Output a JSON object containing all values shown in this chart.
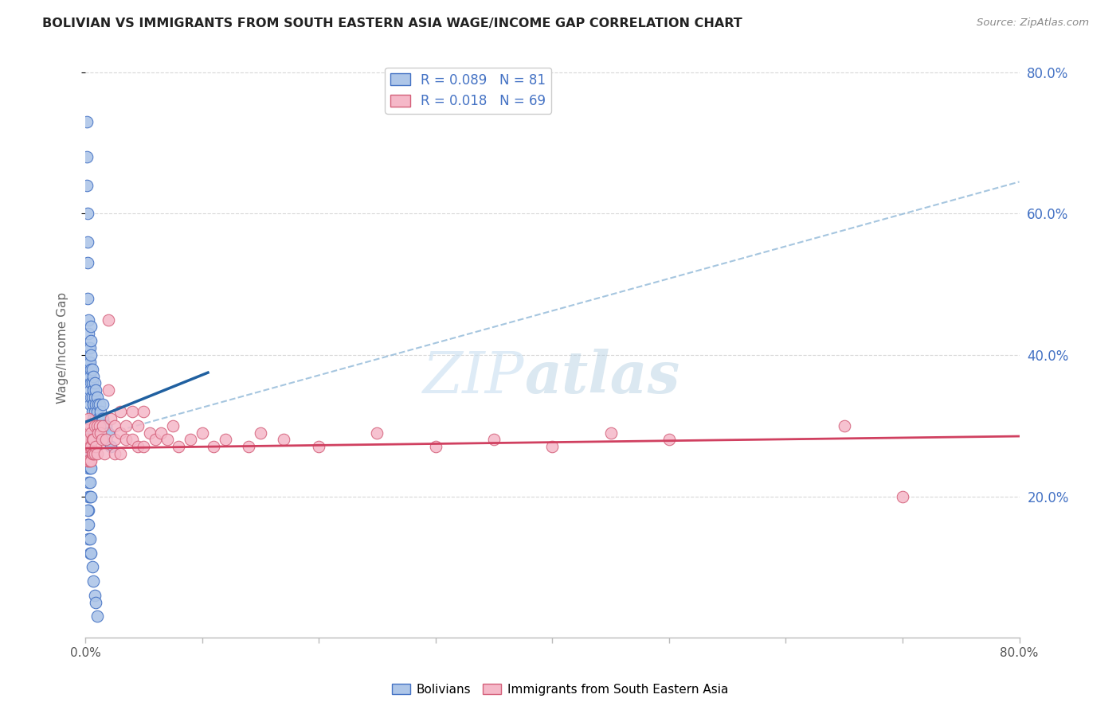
{
  "title": "BOLIVIAN VS IMMIGRANTS FROM SOUTH EASTERN ASIA WAGE/INCOME GAP CORRELATION CHART",
  "source": "Source: ZipAtlas.com",
  "ylabel": "Wage/Income Gap",
  "xmin": 0.0,
  "xmax": 0.8,
  "ymin": 0.0,
  "ymax": 0.82,
  "yticks": [
    0.2,
    0.4,
    0.6,
    0.8
  ],
  "ytick_labels": [
    "20.0%",
    "40.0%",
    "60.0%",
    "80.0%"
  ],
  "blue_R": 0.089,
  "blue_N": 81,
  "pink_R": 0.018,
  "pink_N": 69,
  "blue_color": "#aec6e8",
  "blue_edge_color": "#4472c4",
  "pink_color": "#f5b8c8",
  "pink_edge_color": "#d4607a",
  "blue_line_color": "#2060a0",
  "pink_line_color": "#d04060",
  "dash_line_color": "#90b8d8",
  "blue_trend_x": [
    0.0,
    0.105
  ],
  "blue_trend_y": [
    0.305,
    0.375
  ],
  "pink_trend_x": [
    0.0,
    0.8
  ],
  "pink_trend_y": [
    0.268,
    0.285
  ],
  "dash_line_x": [
    0.0,
    0.8
  ],
  "dash_line_y": [
    0.28,
    0.645
  ],
  "watermark_zip": "ZIP",
  "watermark_atlas": "atlas",
  "legend_text_color": "#4472c4",
  "background_color": "#ffffff",
  "grid_color": "#d8d8d8",
  "xtick_minor_positions": [
    0.1,
    0.2,
    0.3,
    0.4,
    0.5,
    0.6,
    0.7
  ],
  "blue_scatter_x": [
    0.001,
    0.001,
    0.001,
    0.002,
    0.002,
    0.002,
    0.002,
    0.003,
    0.003,
    0.003,
    0.003,
    0.003,
    0.004,
    0.004,
    0.004,
    0.004,
    0.004,
    0.005,
    0.005,
    0.005,
    0.005,
    0.005,
    0.005,
    0.006,
    0.006,
    0.006,
    0.006,
    0.007,
    0.007,
    0.007,
    0.007,
    0.008,
    0.008,
    0.008,
    0.009,
    0.009,
    0.009,
    0.01,
    0.01,
    0.01,
    0.011,
    0.011,
    0.012,
    0.012,
    0.013,
    0.013,
    0.014,
    0.015,
    0.015,
    0.016,
    0.018,
    0.018,
    0.02,
    0.022,
    0.002,
    0.003,
    0.004,
    0.005,
    0.006,
    0.007,
    0.003,
    0.004,
    0.005,
    0.003,
    0.004,
    0.003,
    0.004,
    0.005,
    0.003,
    0.002,
    0.002,
    0.003,
    0.003,
    0.004,
    0.004,
    0.005,
    0.006,
    0.007,
    0.008,
    0.009,
    0.01
  ],
  "blue_scatter_y": [
    0.73,
    0.68,
    0.64,
    0.6,
    0.56,
    0.53,
    0.48,
    0.45,
    0.43,
    0.41,
    0.39,
    0.37,
    0.41,
    0.39,
    0.37,
    0.35,
    0.33,
    0.44,
    0.42,
    0.4,
    0.38,
    0.36,
    0.34,
    0.38,
    0.36,
    0.34,
    0.32,
    0.37,
    0.35,
    0.33,
    0.31,
    0.36,
    0.34,
    0.32,
    0.35,
    0.33,
    0.31,
    0.34,
    0.32,
    0.3,
    0.33,
    0.31,
    0.33,
    0.31,
    0.32,
    0.3,
    0.31,
    0.33,
    0.31,
    0.3,
    0.3,
    0.28,
    0.29,
    0.27,
    0.29,
    0.28,
    0.27,
    0.26,
    0.26,
    0.26,
    0.24,
    0.24,
    0.24,
    0.22,
    0.22,
    0.2,
    0.2,
    0.2,
    0.18,
    0.18,
    0.16,
    0.16,
    0.14,
    0.14,
    0.12,
    0.12,
    0.1,
    0.08,
    0.06,
    0.05,
    0.03
  ],
  "pink_scatter_x": [
    0.001,
    0.001,
    0.002,
    0.002,
    0.002,
    0.003,
    0.003,
    0.003,
    0.004,
    0.004,
    0.004,
    0.005,
    0.005,
    0.005,
    0.006,
    0.006,
    0.007,
    0.007,
    0.008,
    0.008,
    0.009,
    0.01,
    0.01,
    0.011,
    0.012,
    0.013,
    0.014,
    0.015,
    0.016,
    0.018,
    0.02,
    0.02,
    0.022,
    0.025,
    0.025,
    0.025,
    0.03,
    0.03,
    0.03,
    0.035,
    0.035,
    0.04,
    0.04,
    0.045,
    0.045,
    0.05,
    0.05,
    0.055,
    0.06,
    0.065,
    0.07,
    0.075,
    0.08,
    0.09,
    0.1,
    0.11,
    0.12,
    0.14,
    0.15,
    0.17,
    0.2,
    0.25,
    0.3,
    0.35,
    0.4,
    0.45,
    0.5,
    0.65,
    0.7
  ],
  "pink_scatter_y": [
    0.28,
    0.26,
    0.3,
    0.27,
    0.25,
    0.31,
    0.28,
    0.25,
    0.3,
    0.27,
    0.25,
    0.29,
    0.27,
    0.25,
    0.28,
    0.26,
    0.28,
    0.26,
    0.3,
    0.26,
    0.27,
    0.3,
    0.26,
    0.29,
    0.3,
    0.29,
    0.28,
    0.3,
    0.26,
    0.28,
    0.45,
    0.35,
    0.31,
    0.3,
    0.28,
    0.26,
    0.32,
    0.29,
    0.26,
    0.3,
    0.28,
    0.32,
    0.28,
    0.3,
    0.27,
    0.32,
    0.27,
    0.29,
    0.28,
    0.29,
    0.28,
    0.3,
    0.27,
    0.28,
    0.29,
    0.27,
    0.28,
    0.27,
    0.29,
    0.28,
    0.27,
    0.29,
    0.27,
    0.28,
    0.27,
    0.29,
    0.28,
    0.3,
    0.2
  ]
}
